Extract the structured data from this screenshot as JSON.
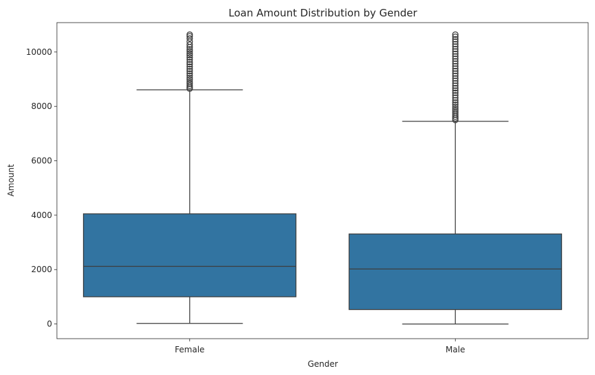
{
  "chart_data": {
    "type": "box",
    "title": "Loan Amount Distribution by Gender",
    "xlabel": "Gender",
    "ylabel": "Amount",
    "ylim": [
      -540,
      11080
    ],
    "yticks": [
      0,
      2000,
      4000,
      6000,
      8000,
      10000
    ],
    "categories": [
      "Female",
      "Male"
    ],
    "box_color": "#3274a1",
    "line_color": "#3d3d3d",
    "series": [
      {
        "category": "Female",
        "whisker_low": 20,
        "q1": 1000,
        "median": 2120,
        "q3": 4050,
        "whisker_high": 8610,
        "outliers": [
          8650,
          8700,
          8760,
          8830,
          8900,
          8980,
          9050,
          9130,
          9210,
          9300,
          9380,
          9460,
          9550,
          9630,
          9720,
          9800,
          9880,
          9950,
          10030,
          10100,
          10180,
          10270,
          10380,
          10500,
          10580,
          10640
        ]
      },
      {
        "category": "Male",
        "whisker_low": 0,
        "q1": 530,
        "median": 2020,
        "q3": 3310,
        "whisker_high": 7450,
        "outliers": [
          7500,
          7560,
          7620,
          7690,
          7760,
          7830,
          7900,
          7980,
          8060,
          8140,
          8230,
          8320,
          8410,
          8500,
          8580,
          8670,
          8760,
          8850,
          8940,
          9030,
          9120,
          9210,
          9300,
          9390,
          9480,
          9570,
          9660,
          9750,
          9840,
          9930,
          10020,
          10110,
          10200,
          10290,
          10380,
          10470,
          10560,
          10640
        ]
      }
    ]
  }
}
